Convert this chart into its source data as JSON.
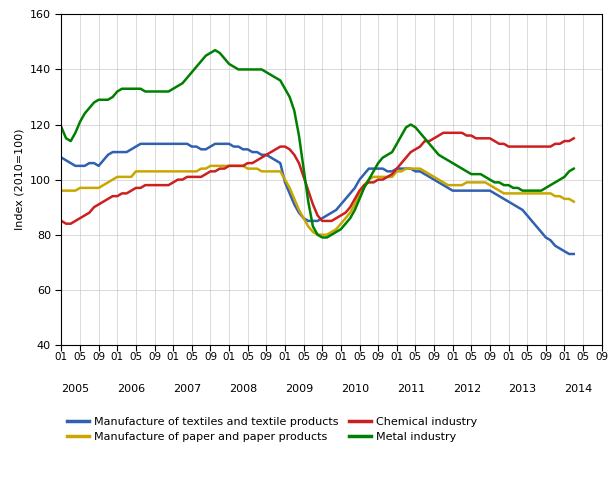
{
  "title": "",
  "ylabel": "Index (2010=100)",
  "ylim": [
    40,
    160
  ],
  "yticks": [
    40,
    60,
    80,
    100,
    120,
    140,
    160
  ],
  "grid_color": "#cccccc",
  "bg_color": "#ffffff",
  "line_width": 1.8,
  "series": {
    "textiles": {
      "label": "Manufacture of textiles and textile products",
      "color": "#3060b0",
      "values": [
        108,
        107,
        106,
        105,
        105,
        105,
        106,
        106,
        105,
        107,
        109,
        110,
        110,
        110,
        110,
        111,
        112,
        113,
        113,
        113,
        113,
        113,
        113,
        113,
        113,
        113,
        113,
        113,
        112,
        112,
        111,
        111,
        112,
        113,
        113,
        113,
        113,
        112,
        112,
        111,
        111,
        110,
        110,
        109,
        109,
        108,
        107,
        106,
        99,
        95,
        91,
        88,
        86,
        85,
        85,
        85,
        86,
        87,
        88,
        89,
        91,
        93,
        95,
        97,
        100,
        102,
        104,
        104,
        104,
        104,
        103,
        103,
        104,
        104,
        104,
        104,
        103,
        103,
        102,
        101,
        100,
        99,
        98,
        97,
        96,
        96,
        96,
        96,
        96,
        96,
        96,
        96,
        96,
        95,
        94,
        93,
        92,
        91,
        90,
        89,
        87,
        85,
        83,
        81,
        79,
        78,
        76,
        75,
        74,
        73,
        73
      ]
    },
    "paper": {
      "label": "Manufacture of paper and paper products",
      "color": "#c8a800",
      "values": [
        96,
        96,
        96,
        96,
        97,
        97,
        97,
        97,
        97,
        98,
        99,
        100,
        101,
        101,
        101,
        101,
        103,
        103,
        103,
        103,
        103,
        103,
        103,
        103,
        103,
        103,
        103,
        103,
        103,
        103,
        104,
        104,
        105,
        105,
        105,
        105,
        105,
        105,
        105,
        105,
        104,
        104,
        104,
        103,
        103,
        103,
        103,
        103,
        100,
        97,
        93,
        89,
        86,
        83,
        81,
        80,
        80,
        80,
        81,
        82,
        84,
        86,
        88,
        91,
        95,
        98,
        100,
        101,
        101,
        101,
        101,
        101,
        103,
        103,
        104,
        104,
        104,
        104,
        103,
        102,
        101,
        100,
        99,
        98,
        98,
        98,
        98,
        99,
        99,
        99,
        99,
        99,
        98,
        97,
        96,
        95,
        95,
        95,
        95,
        95,
        95,
        95,
        95,
        95,
        95,
        95,
        94,
        94,
        93,
        93,
        92
      ]
    },
    "chemical": {
      "label": "Chemical industry",
      "color": "#cc2020",
      "values": [
        85,
        84,
        84,
        85,
        86,
        87,
        88,
        90,
        91,
        92,
        93,
        94,
        94,
        95,
        95,
        96,
        97,
        97,
        98,
        98,
        98,
        98,
        98,
        98,
        99,
        100,
        100,
        101,
        101,
        101,
        101,
        102,
        103,
        103,
        104,
        104,
        105,
        105,
        105,
        105,
        106,
        106,
        107,
        108,
        109,
        110,
        111,
        112,
        112,
        111,
        109,
        106,
        101,
        96,
        91,
        87,
        85,
        85,
        85,
        86,
        87,
        88,
        90,
        93,
        96,
        98,
        99,
        99,
        100,
        100,
        101,
        102,
        104,
        106,
        108,
        110,
        111,
        112,
        114,
        114,
        115,
        116,
        117,
        117,
        117,
        117,
        117,
        116,
        116,
        115,
        115,
        115,
        115,
        114,
        113,
        113,
        112,
        112,
        112,
        112,
        112,
        112,
        112,
        112,
        112,
        112,
        113,
        113,
        114,
        114,
        115
      ]
    },
    "metal": {
      "label": "Metal industry",
      "color": "#008000",
      "values": [
        119,
        115,
        114,
        117,
        121,
        124,
        126,
        128,
        129,
        129,
        129,
        130,
        132,
        133,
        133,
        133,
        133,
        133,
        132,
        132,
        132,
        132,
        132,
        132,
        133,
        134,
        135,
        137,
        139,
        141,
        143,
        145,
        146,
        147,
        146,
        144,
        142,
        141,
        140,
        140,
        140,
        140,
        140,
        140,
        139,
        138,
        137,
        136,
        133,
        130,
        125,
        116,
        104,
        92,
        83,
        80,
        79,
        79,
        80,
        81,
        82,
        84,
        86,
        89,
        93,
        97,
        100,
        103,
        106,
        108,
        109,
        110,
        113,
        116,
        119,
        120,
        119,
        117,
        115,
        113,
        111,
        109,
        108,
        107,
        106,
        105,
        104,
        103,
        102,
        102,
        102,
        101,
        100,
        99,
        99,
        98,
        98,
        97,
        97,
        96,
        96,
        96,
        96,
        96,
        97,
        98,
        99,
        100,
        101,
        103,
        104
      ]
    }
  },
  "x_tick_positions": [
    0,
    4,
    8,
    12,
    16,
    20,
    24,
    28,
    32,
    36,
    40,
    44,
    48,
    52,
    56,
    60,
    64,
    68,
    72,
    76,
    80,
    84,
    88,
    92,
    96,
    100,
    104,
    108,
    112,
    116
  ],
  "x_tick_labels": [
    "01",
    "05",
    "09",
    "01",
    "05",
    "09",
    "01",
    "05",
    "09",
    "01",
    "05",
    "09",
    "01",
    "05",
    "09",
    "01",
    "05",
    "09",
    "01",
    "05",
    "09",
    "01",
    "05",
    "09",
    "01",
    "05",
    "09",
    "01",
    "05",
    "09"
  ],
  "year_positions": [
    0,
    12,
    24,
    36,
    48,
    60,
    72,
    84,
    96,
    108
  ],
  "year_labels": [
    "2005",
    "2006",
    "2007",
    "2008",
    "2009",
    "2010",
    "2011",
    "2012",
    "2013",
    "2014"
  ],
  "legend_order": [
    "textiles",
    "paper",
    "chemical",
    "metal"
  ]
}
